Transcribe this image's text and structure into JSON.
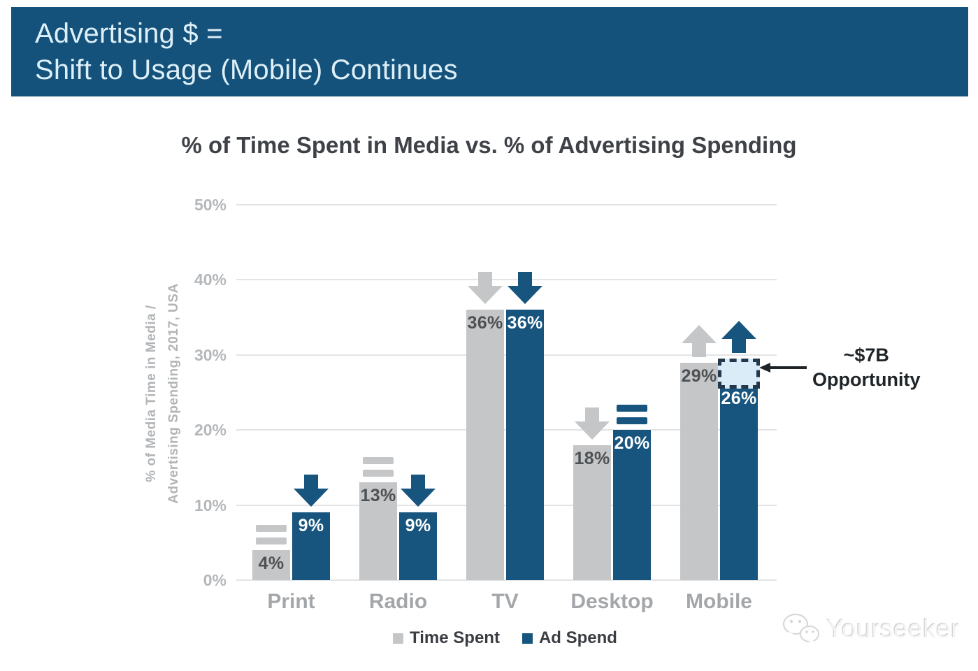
{
  "header": {
    "line1": "Advertising $ =",
    "line2": "Shift to Usage (Mobile) Continues"
  },
  "chart_data": {
    "type": "bar",
    "title": "% of Time Spent in Media vs. % of Advertising Spending",
    "ylabel_line1": "% of Media Time in Media /",
    "ylabel_line2": "Advertising Spending, 2017, USA",
    "categories": [
      "Print",
      "Radio",
      "TV",
      "Desktop",
      "Mobile"
    ],
    "series": [
      {
        "name": "Time Spent",
        "values": [
          4,
          13,
          36,
          18,
          29
        ],
        "trend": [
          "flat",
          "flat",
          "down",
          "down",
          "up"
        ]
      },
      {
        "name": "Ad Spend",
        "values": [
          9,
          9,
          36,
          20,
          26
        ],
        "trend": [
          "down",
          "down",
          "down",
          "flat",
          "up"
        ]
      }
    ],
    "value_suffix": "%",
    "ylim": [
      0,
      50
    ],
    "yticks": [
      "50%",
      "40%",
      "30%",
      "20%",
      "10%",
      "0%"
    ],
    "ytick_values": [
      50,
      40,
      30,
      20,
      10,
      0
    ],
    "grid": true,
    "legend_position": "bottom",
    "annotation": {
      "line1": "~$7B",
      "line2": "Opportunity",
      "category": "Mobile",
      "series": "Ad Spend",
      "box_from_value": 26,
      "box_to_value": 30
    }
  },
  "icons": {
    "flat": "equals-icon",
    "down": "arrow-down-icon",
    "up": "arrow-up-icon",
    "annotation": "arrow-left-icon",
    "watermark": "chat-bubbles-icon"
  },
  "watermark": {
    "text": "Yourseeker"
  },
  "colors": {
    "banner_bg": "#15527b",
    "banner_text": "#ddeff8",
    "time_spent": "#c4c6c7",
    "ad_spend": "#17547e",
    "bar_label_on_gray": "#4e5154",
    "bar_label_on_blue": "#ffffff",
    "grid": "#e3e4e5",
    "opportunity_fill": "#d9ecf8",
    "opportunity_border": "#24384d",
    "annotation_arrow": "#1f2428"
  }
}
